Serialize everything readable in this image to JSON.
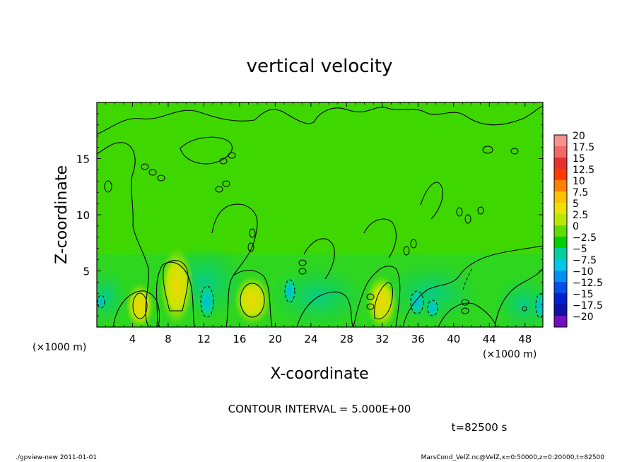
{
  "chart_data": {
    "type": "heatmap",
    "subtype": "filled-contour",
    "title": "vertical velocity",
    "xlabel": "X-coordinate",
    "ylabel": "Z-coordinate",
    "x_unit": "(×1000 m)",
    "y_unit": "(×1000 m)",
    "xlim": [
      0,
      50
    ],
    "ylim": [
      0,
      20
    ],
    "x_ticks": [
      4,
      8,
      12,
      16,
      20,
      24,
      28,
      32,
      36,
      40,
      44,
      48
    ],
    "x_tick_labels": [
      "4",
      "8",
      "12",
      "16",
      "20",
      "24",
      "28",
      "32",
      "36",
      "40",
      "44",
      "48"
    ],
    "y_ticks": [
      5,
      10,
      15
    ],
    "y_tick_labels": [
      "5",
      "10",
      "15"
    ],
    "contour_interval_text": "CONTOUR INTERVAL = 5.000E+00",
    "time_text": "t=82500 s",
    "colorbar": {
      "labels": [
        "20",
        "17.5",
        "15",
        "12.5",
        "10",
        "7.5",
        "5",
        "2.5",
        "0",
        "−2.5",
        "−5",
        "−7.5",
        "−10",
        "−12.5",
        "−15",
        "−17.5",
        "−20"
      ],
      "colors": [
        "#f89090",
        "#f06868",
        "#e83030",
        "#ff3c00",
        "#ff8000",
        "#ffc000",
        "#eee000",
        "#b8e800",
        "#60dc00",
        "#00d000",
        "#00d0a0",
        "#00c8e8",
        "#0090f0",
        "#0050e8",
        "#0020d0",
        "#1010a8",
        "#7010c0"
      ]
    },
    "features": [
      {
        "kind": "updraft",
        "x": 4.8,
        "z": 1.9,
        "value": 7.5
      },
      {
        "kind": "updraft",
        "x": 9.0,
        "z": 3.5,
        "value": 5
      },
      {
        "kind": "downdraft",
        "x": 12.4,
        "z": 2.3,
        "value": -5
      },
      {
        "kind": "updraft",
        "x": 17.6,
        "z": 2.3,
        "value": 7.5
      },
      {
        "kind": "downdraft",
        "x": 21.6,
        "z": 3.2,
        "value": -5
      },
      {
        "kind": "updraft",
        "x": 31.8,
        "z": 2.4,
        "value": 7.5
      },
      {
        "kind": "downdraft",
        "x": 35.9,
        "z": 2.4,
        "value": -5
      },
      {
        "kind": "downdraft",
        "x": 37.6,
        "z": 1.8,
        "value": -5
      },
      {
        "kind": "downdraft",
        "x": 49.7,
        "z": 2.2,
        "value": -5
      }
    ]
  },
  "footer": {
    "left": "./gpview-new   2011-01-01",
    "right": "MarsCond_VelZ.nc@VelZ,x=0:50000,z=0:20000,t=82500"
  }
}
